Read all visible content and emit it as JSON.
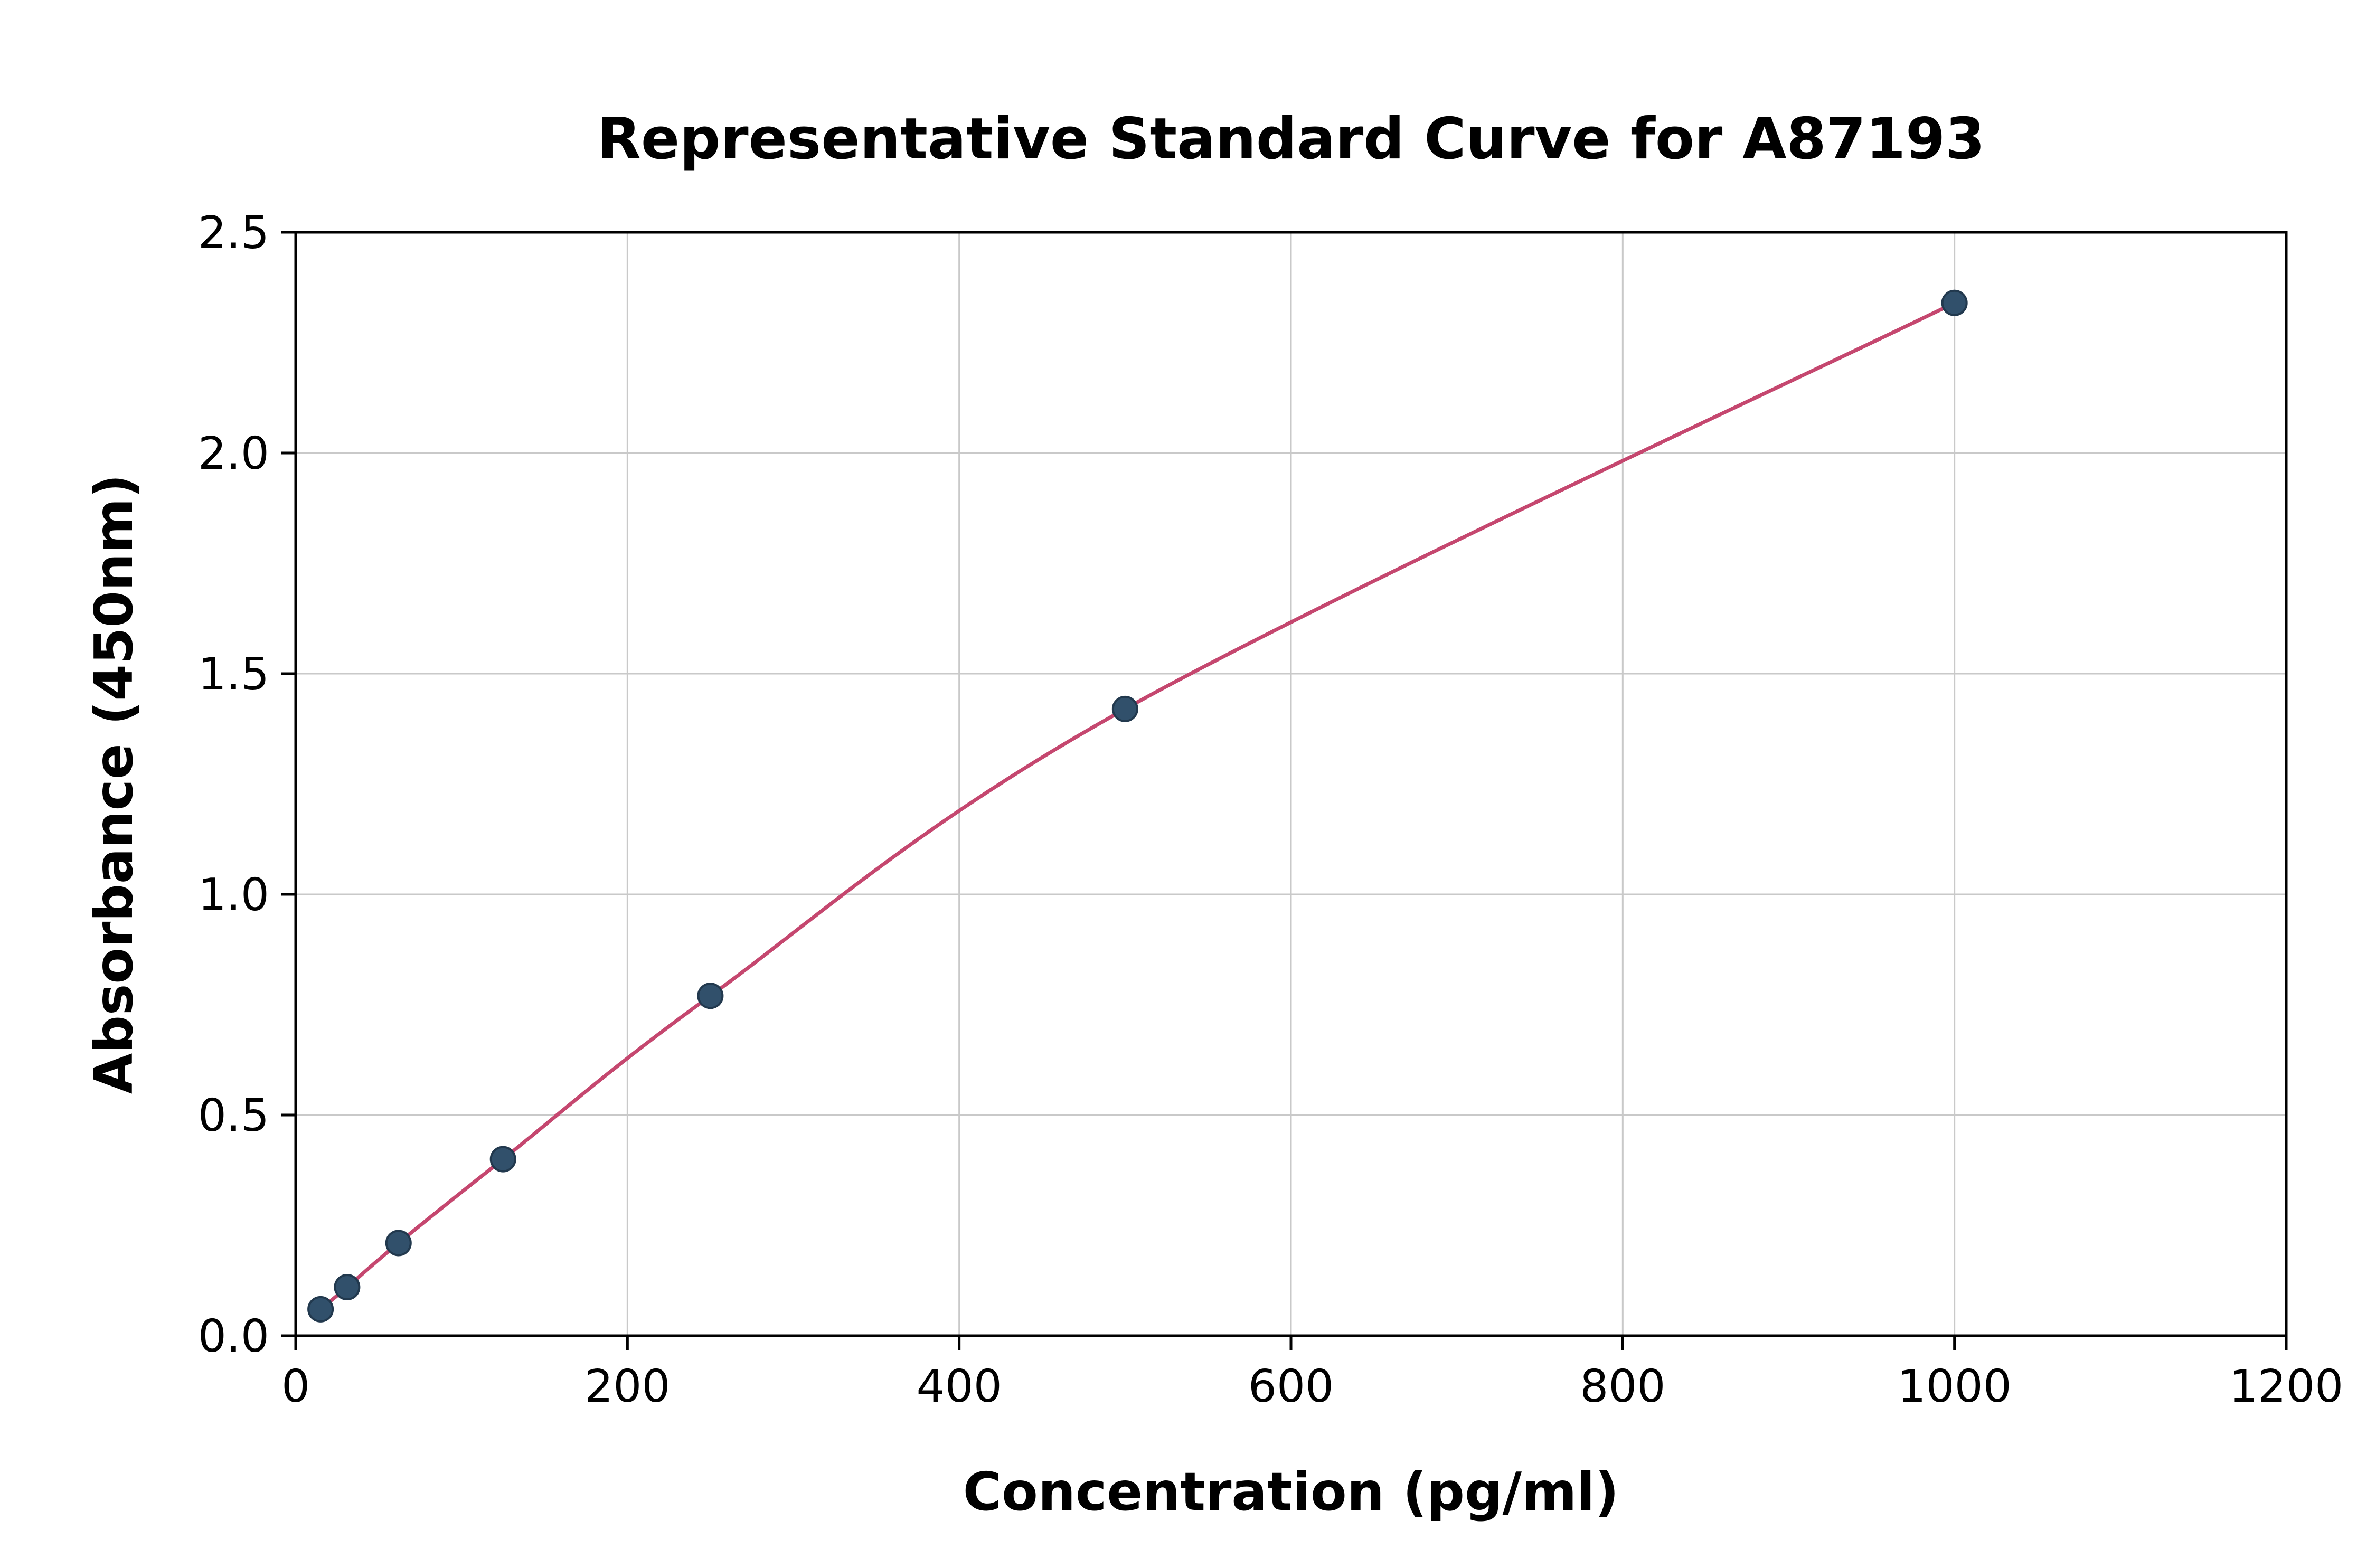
{
  "chart_data": {
    "type": "line",
    "title": "Representative Standard Curve for A87193",
    "xlabel": "Concentration (pg/ml)",
    "ylabel": "Absorbance (450nm)",
    "xlim": [
      0,
      1200
    ],
    "ylim": [
      0,
      2.5
    ],
    "grid": true,
    "legend": "none",
    "xticks": {
      "values": [
        0,
        200,
        400,
        600,
        800,
        1000,
        1200
      ],
      "labels": [
        "0",
        "200",
        "400",
        "600",
        "800",
        "1000",
        "1200"
      ]
    },
    "yticks": {
      "values": [
        0,
        0.5,
        1.0,
        1.5,
        2.0,
        2.5
      ],
      "labels": [
        "0.0",
        "0.5",
        "1.0",
        "1.5",
        "2.0",
        "2.5"
      ]
    },
    "points": {
      "x": [
        15,
        31,
        62,
        125,
        250,
        500,
        1000
      ],
      "y": [
        0.06,
        0.11,
        0.21,
        0.4,
        0.77,
        1.42,
        2.34
      ]
    },
    "colors": {
      "curve": "#c5476f",
      "marker_fill": "#31506b",
      "marker_edge": "#22394e",
      "grid": "#c9c9c9",
      "spine": "#000000",
      "text": "#000000"
    }
  }
}
